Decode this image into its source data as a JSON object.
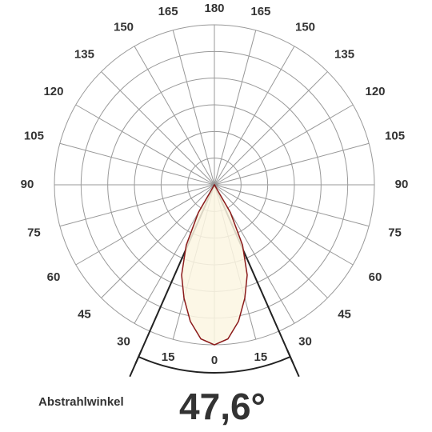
{
  "chart_data": {
    "type": "polar",
    "angles": [
      -35,
      -30,
      -25,
      -20,
      -15,
      -10,
      -5,
      0,
      5,
      10,
      15,
      20,
      25,
      30,
      35
    ],
    "values": [
      0,
      1.2,
      2.5,
      3.6,
      4.4,
      5.2,
      5.8,
      6,
      5.8,
      5.2,
      4.4,
      3.6,
      2.5,
      1.2,
      0
    ],
    "color": "#8b1a1a",
    "fill": "#fbf6e2",
    "rlim": [
      0,
      6
    ],
    "rticks": [
      1,
      2,
      3,
      4,
      5,
      6
    ],
    "grid": true,
    "angle_ticks": [
      0,
      15,
      30,
      45,
      60,
      75,
      90,
      105,
      120,
      135,
      150,
      165,
      180,
      {
        "value": -15,
        "label": "15"
      },
      {
        "value": -30,
        "label": "30"
      },
      {
        "value": -45,
        "label": "45"
      },
      {
        "value": -60,
        "label": "60"
      },
      {
        "value": -75,
        "label": "75"
      },
      {
        "value": -90,
        "label": "90"
      },
      {
        "value": -105,
        "label": "105"
      },
      {
        "value": -120,
        "label": "120"
      },
      {
        "value": -135,
        "label": "135"
      },
      {
        "value": -150,
        "label": "150"
      },
      {
        "value": -165,
        "label": "165"
      }
    ],
    "beam_label": "Abstrahlwinkel",
    "beam_angle": {
      "value": 47.6,
      "label": "47,6°"
    }
  }
}
